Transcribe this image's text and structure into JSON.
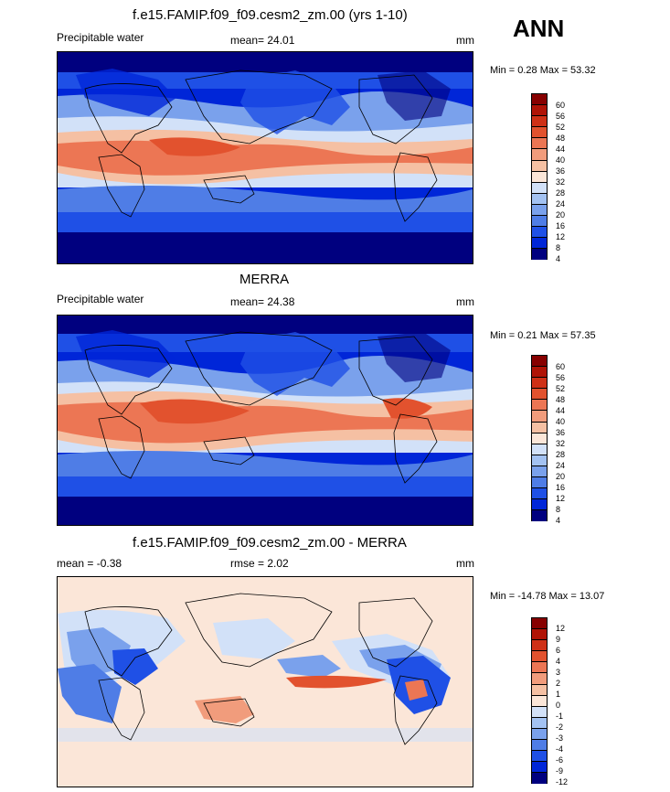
{
  "season": "ANN",
  "colors": {
    "model_mean_scale": [
      "#00007f",
      "#0026d8",
      "#1f50e6",
      "#4f7de6",
      "#7aa1ec",
      "#a3c2f2",
      "#d2e1f8",
      "#fbe6d8",
      "#f5c0a3",
      "#f19c7c",
      "#ec7654",
      "#e2522e",
      "#cf3016",
      "#b01306",
      "#870000"
    ],
    "diff_scale": [
      "#00007f",
      "#0026d8",
      "#1f50e6",
      "#4f7de6",
      "#7aa1ec",
      "#a3c2f2",
      "#d2e1f8",
      "#fbe6d8",
      "#f5c0a3",
      "#f19c7c",
      "#ec7654",
      "#e2522e",
      "#cf3016",
      "#b01306",
      "#870000"
    ]
  },
  "chart_data": [
    {
      "type": "heatmap",
      "title": "f.e15.FAMIP.f09_f09.cesm2_zm.00 (yrs 1-10)",
      "variable_label": "Precipitable water",
      "stat_text": "mean=  24.01",
      "units": "mm",
      "minmax_text": "Min =   0.28 Max =  53.32",
      "mean": 24.01,
      "min": 0.28,
      "max": 53.32,
      "colorbar_levels": [
        "4",
        "8",
        "12",
        "16",
        "20",
        "24",
        "28",
        "32",
        "36",
        "40",
        "44",
        "48",
        "52",
        "56",
        "60"
      ]
    },
    {
      "type": "heatmap",
      "title": "MERRA",
      "variable_label": "Precipitable water",
      "stat_text": "mean=  24.38",
      "units": "mm",
      "minmax_text": "Min =   0.21 Max =  57.35",
      "mean": 24.38,
      "min": 0.21,
      "max": 57.35,
      "colorbar_levels": [
        "4",
        "8",
        "12",
        "16",
        "20",
        "24",
        "28",
        "32",
        "36",
        "40",
        "44",
        "48",
        "52",
        "56",
        "60"
      ]
    },
    {
      "type": "heatmap",
      "title": "f.e15.FAMIP.f09_f09.cesm2_zm.00 - MERRA",
      "stat_text": "mean =  -0.38",
      "rmse_text": "rmse =   2.02",
      "units": "mm",
      "minmax_text": "Min = -14.78 Max =  13.07",
      "mean": -0.38,
      "rmse": 2.02,
      "min": -14.78,
      "max": 13.07,
      "colorbar_levels": [
        "-12",
        "-9",
        "-6",
        "-4",
        "-3",
        "-2",
        "-1",
        "0",
        "1",
        "2",
        "3",
        "4",
        "6",
        "9",
        "12"
      ]
    }
  ]
}
